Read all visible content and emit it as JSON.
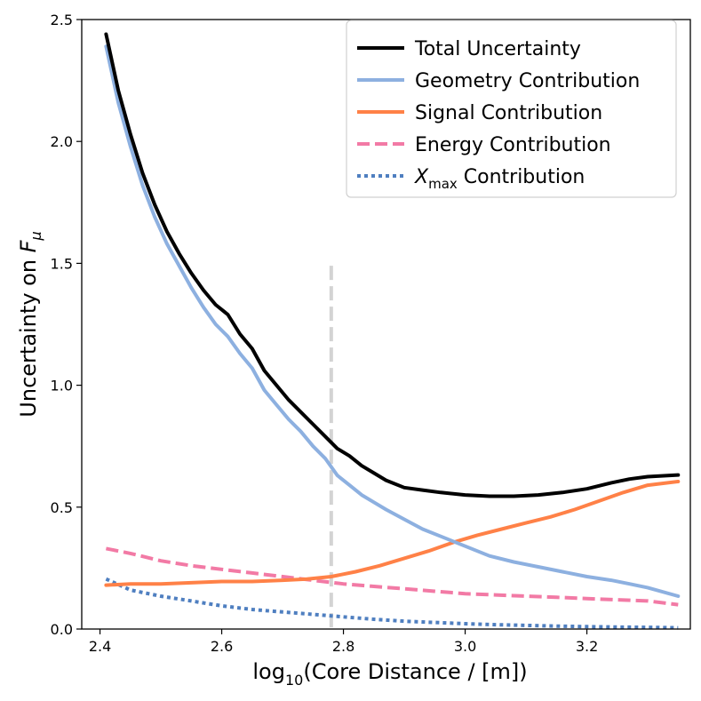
{
  "chart_data": {
    "type": "line",
    "title": "",
    "xlabel": {
      "base": "log",
      "sub": "10",
      "rest": "(Core Distance / [m])"
    },
    "ylabel": {
      "text": "Uncertainty on ",
      "var": "F",
      "sub": "μ"
    },
    "xlim": [
      2.37,
      3.37
    ],
    "ylim": [
      0.0,
      2.5
    ],
    "xticks": [
      2.4,
      2.6,
      2.8,
      3.0,
      3.2
    ],
    "xtick_labels": [
      "2.4",
      "2.6",
      "2.8",
      "3.0",
      "3.2"
    ],
    "yticks": [
      0.0,
      0.5,
      1.0,
      1.5,
      2.0,
      2.5
    ],
    "ytick_labels": [
      "0.0",
      "0.5",
      "1.0",
      "1.5",
      "2.0",
      "2.5"
    ],
    "grid": false,
    "legend_position": "top-right",
    "reference_line": {
      "x": 2.78,
      "y_range": [
        0.0,
        1.49
      ],
      "color": "#d3d3d3",
      "style": "dashed"
    },
    "series": [
      {
        "name": "Total Uncertainty",
        "legend_label": "Total Uncertainty",
        "color": "#000000",
        "style": "solid",
        "x": [
          2.41,
          2.43,
          2.45,
          2.47,
          2.49,
          2.51,
          2.53,
          2.55,
          2.57,
          2.59,
          2.61,
          2.63,
          2.65,
          2.67,
          2.69,
          2.71,
          2.73,
          2.75,
          2.77,
          2.79,
          2.81,
          2.83,
          2.85,
          2.87,
          2.9,
          2.93,
          2.96,
          3.0,
          3.04,
          3.08,
          3.12,
          3.16,
          3.2,
          3.24,
          3.27,
          3.3,
          3.35
        ],
        "y": [
          2.44,
          2.21,
          2.03,
          1.87,
          1.74,
          1.63,
          1.54,
          1.46,
          1.39,
          1.33,
          1.29,
          1.21,
          1.15,
          1.06,
          1.0,
          0.94,
          0.89,
          0.84,
          0.79,
          0.74,
          0.71,
          0.67,
          0.64,
          0.61,
          0.58,
          0.57,
          0.56,
          0.55,
          0.545,
          0.545,
          0.55,
          0.56,
          0.575,
          0.6,
          0.615,
          0.625,
          0.632
        ]
      },
      {
        "name": "Geometry Contribution",
        "legend_label": "Geometry Contribution",
        "color": "#8db0e0",
        "style": "solid",
        "x": [
          2.41,
          2.43,
          2.45,
          2.47,
          2.49,
          2.51,
          2.53,
          2.55,
          2.57,
          2.59,
          2.61,
          2.63,
          2.65,
          2.67,
          2.69,
          2.71,
          2.73,
          2.75,
          2.77,
          2.79,
          2.81,
          2.83,
          2.85,
          2.87,
          2.9,
          2.93,
          2.96,
          3.0,
          3.04,
          3.08,
          3.12,
          3.16,
          3.2,
          3.24,
          3.27,
          3.3,
          3.35
        ],
        "y": [
          2.39,
          2.16,
          1.98,
          1.82,
          1.69,
          1.58,
          1.49,
          1.4,
          1.32,
          1.25,
          1.2,
          1.13,
          1.07,
          0.98,
          0.92,
          0.86,
          0.81,
          0.75,
          0.7,
          0.63,
          0.59,
          0.55,
          0.52,
          0.49,
          0.45,
          0.41,
          0.38,
          0.34,
          0.3,
          0.275,
          0.255,
          0.235,
          0.215,
          0.2,
          0.185,
          0.17,
          0.135
        ]
      },
      {
        "name": "Signal Contribution",
        "legend_label": "Signal Contribution",
        "color": "#ff8147",
        "style": "solid",
        "x": [
          2.41,
          2.45,
          2.5,
          2.55,
          2.6,
          2.65,
          2.7,
          2.74,
          2.78,
          2.82,
          2.86,
          2.9,
          2.94,
          2.98,
          3.02,
          3.06,
          3.1,
          3.14,
          3.18,
          3.22,
          3.26,
          3.3,
          3.35
        ],
        "y": [
          0.18,
          0.185,
          0.185,
          0.19,
          0.195,
          0.195,
          0.2,
          0.205,
          0.215,
          0.235,
          0.26,
          0.29,
          0.32,
          0.355,
          0.385,
          0.41,
          0.435,
          0.46,
          0.49,
          0.525,
          0.56,
          0.59,
          0.605
        ]
      },
      {
        "name": "Energy Contribution",
        "legend_label": "Energy Contribution",
        "color": "#f27aa5",
        "style": "dashed",
        "x": [
          2.41,
          2.45,
          2.5,
          2.55,
          2.6,
          2.65,
          2.7,
          2.75,
          2.8,
          2.85,
          2.9,
          2.95,
          3.0,
          3.05,
          3.1,
          3.15,
          3.2,
          3.25,
          3.3,
          3.35
        ],
        "y": [
          0.33,
          0.31,
          0.28,
          0.26,
          0.245,
          0.23,
          0.215,
          0.2,
          0.185,
          0.175,
          0.165,
          0.155,
          0.145,
          0.14,
          0.135,
          0.13,
          0.125,
          0.12,
          0.115,
          0.1
        ]
      },
      {
        "name": "Xmax Contribution",
        "legend_label": {
          "var": "X",
          "sub": "max",
          "rest": " Contribution"
        },
        "color": "#4f7fc0",
        "style": "dotted",
        "x": [
          2.41,
          2.45,
          2.5,
          2.55,
          2.6,
          2.65,
          2.7,
          2.75,
          2.8,
          2.85,
          2.9,
          2.95,
          3.0,
          3.05,
          3.1,
          3.15,
          3.2,
          3.25,
          3.3,
          3.35
        ],
        "y": [
          0.205,
          0.16,
          0.135,
          0.115,
          0.095,
          0.08,
          0.07,
          0.06,
          0.05,
          0.04,
          0.032,
          0.027,
          0.022,
          0.018,
          0.015,
          0.012,
          0.01,
          0.008,
          0.007,
          0.005
        ]
      }
    ]
  }
}
